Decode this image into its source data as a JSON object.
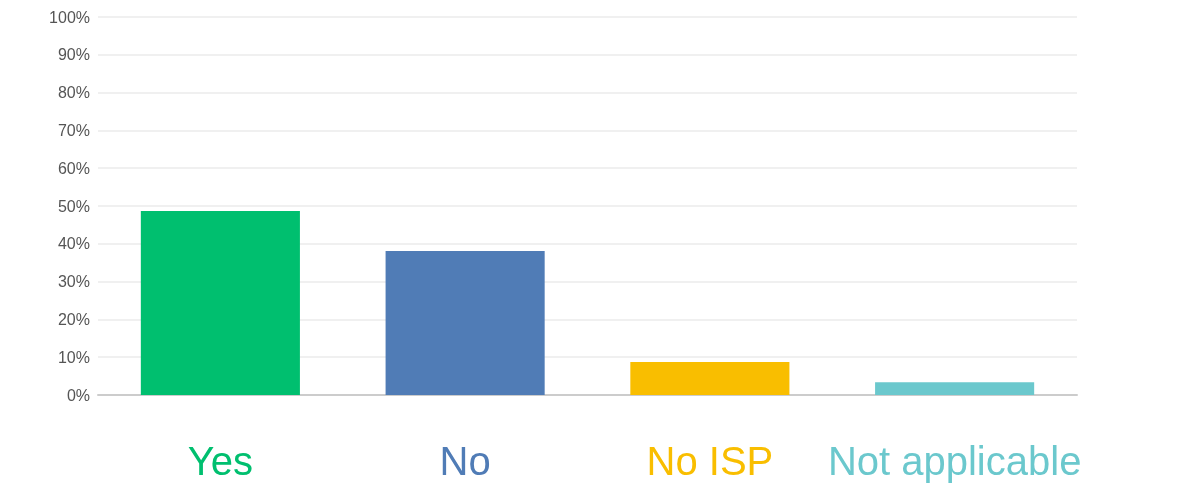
{
  "chart_data": {
    "type": "bar",
    "categories": [
      "Yes",
      "No",
      "No ISP",
      "Not applicable"
    ],
    "values": [
      48.7,
      38.1,
      8.7,
      3.4
    ],
    "colors": [
      "#00bf6f",
      "#507cb6",
      "#f9be00",
      "#6bc8cd"
    ],
    "ylim": [
      0,
      100
    ],
    "yticks": [
      {
        "value": 0,
        "label": "0%"
      },
      {
        "value": 10,
        "label": "10%"
      },
      {
        "value": 20,
        "label": "20%"
      },
      {
        "value": 30,
        "label": "30%"
      },
      {
        "value": 40,
        "label": "40%"
      },
      {
        "value": 50,
        "label": "50%"
      },
      {
        "value": 60,
        "label": "60%"
      },
      {
        "value": 70,
        "label": "70%"
      },
      {
        "value": 80,
        "label": "80%"
      },
      {
        "value": 90,
        "label": "90%"
      },
      {
        "value": 100,
        "label": "100%"
      }
    ],
    "grid": "y"
  }
}
